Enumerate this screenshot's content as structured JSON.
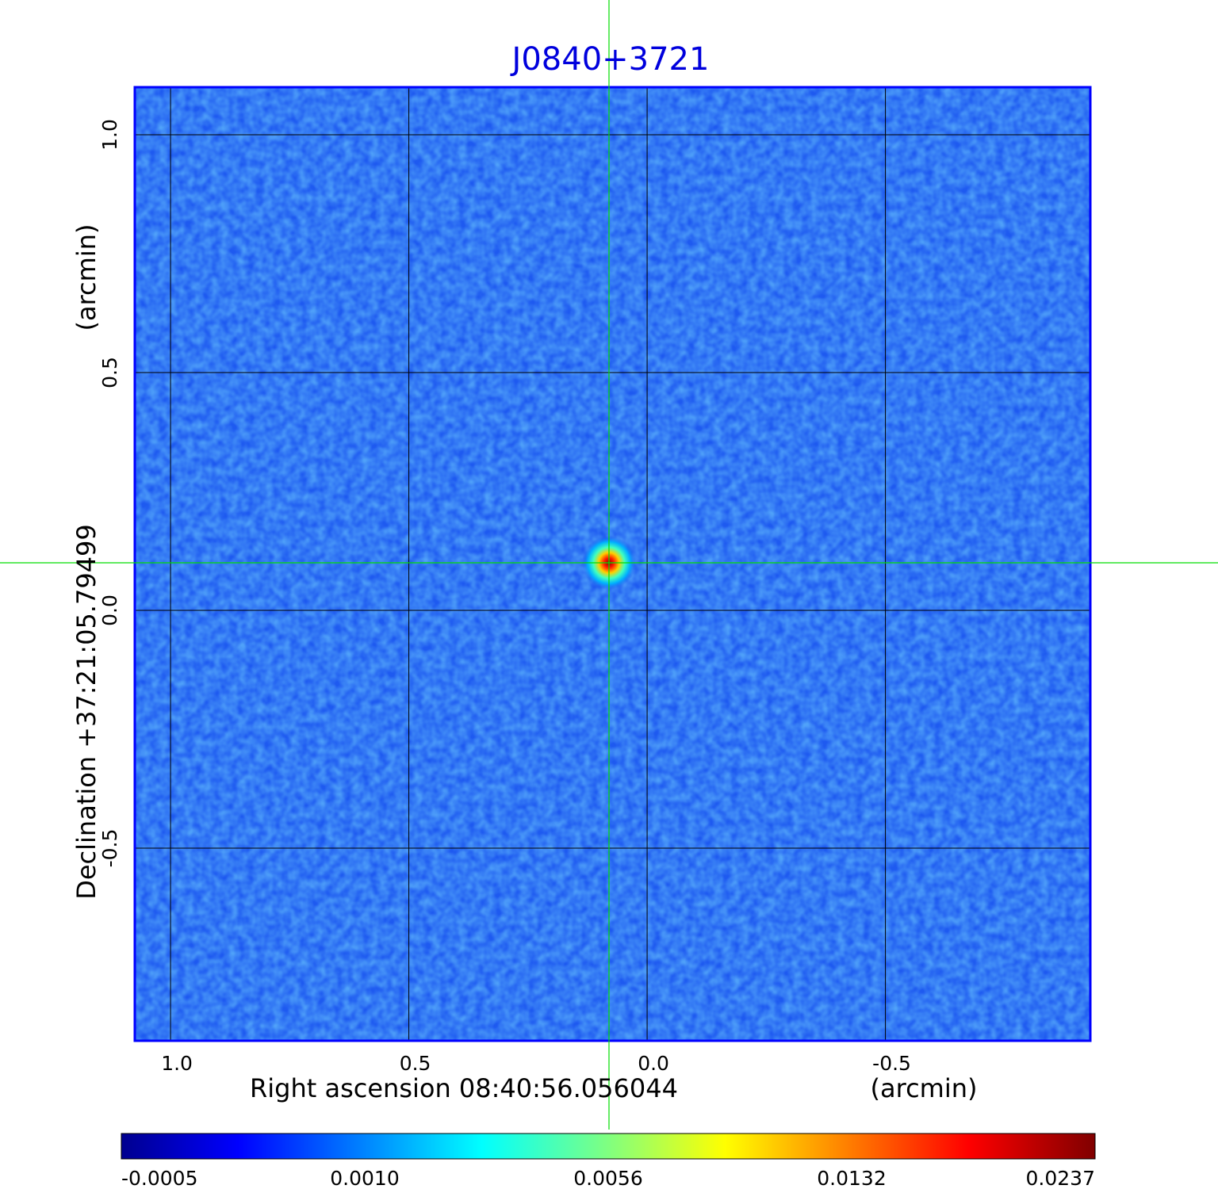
{
  "chart_data": {
    "type": "heatmap",
    "title": "J0840+3721",
    "xlabel": "Right ascension  08:40:56.056044",
    "xlabel_unit": "(arcmin)",
    "ylabel": "Declination  +37:21:05.79499",
    "ylabel_unit": "(arcmin)",
    "x_ticks": [
      1.0,
      0.5,
      0.0,
      -0.5
    ],
    "x_tick_labels": [
      "1.0",
      "0.5",
      "0.0",
      "-0.5"
    ],
    "y_ticks": [
      1.0,
      0.5,
      0.0,
      -0.5
    ],
    "y_tick_labels": [
      "1.0",
      "0.5",
      "0.0",
      "-0.5"
    ],
    "xlim": [
      1.075,
      -0.93
    ],
    "ylim": [
      -0.905,
      1.1
    ],
    "grid": true,
    "crosshair": {
      "x": 0.08,
      "y": 0.1
    },
    "source_peak": {
      "x": 0.08,
      "y": 0.1,
      "value": 0.0237
    },
    "colorbar": {
      "tick_values": [
        -0.0005,
        0.001,
        0.0056,
        0.0132,
        0.0237
      ],
      "tick_labels": [
        "-0.0005",
        "0.0010",
        "0.0056",
        "0.0132",
        "0.0237"
      ],
      "colormap": "jet"
    },
    "colors": {
      "title": "#0000dd",
      "frame": "#0000ff",
      "crosshair": "#00dd00",
      "grid": "#000000",
      "background_map": "#1e5af0"
    }
  }
}
